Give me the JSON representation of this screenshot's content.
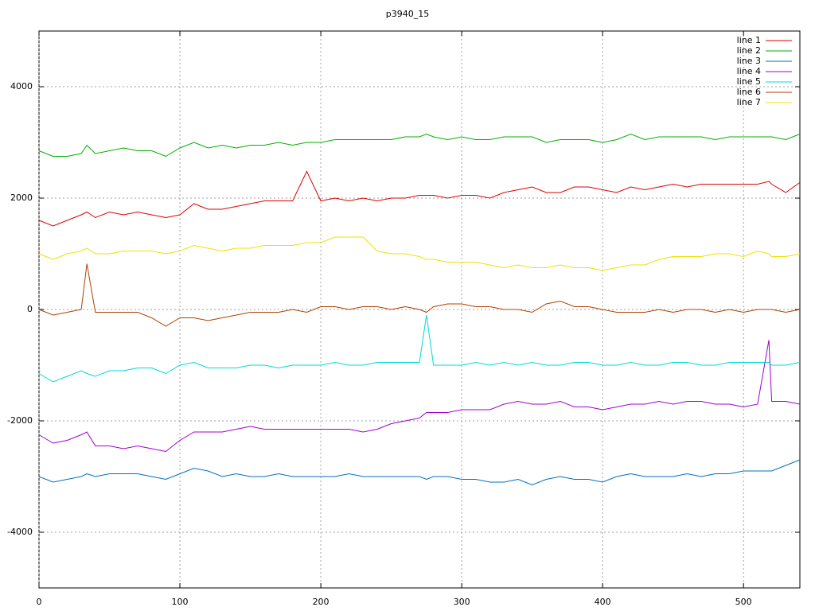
{
  "chart_data": {
    "type": "line",
    "title": "p3940_15",
    "x": [
      0,
      10,
      20,
      30,
      34,
      40,
      50,
      60,
      70,
      80,
      90,
      100,
      110,
      120,
      130,
      140,
      150,
      160,
      170,
      180,
      190,
      200,
      210,
      220,
      230,
      240,
      250,
      260,
      270,
      275,
      280,
      290,
      300,
      310,
      320,
      330,
      340,
      350,
      360,
      370,
      380,
      390,
      400,
      410,
      420,
      430,
      440,
      450,
      460,
      470,
      480,
      490,
      500,
      510,
      518,
      520,
      530,
      540
    ],
    "xlim": [
      0,
      540
    ],
    "xticks": [
      0,
      100,
      200,
      300,
      400,
      500
    ],
    "ylim": [
      -5000,
      5000
    ],
    "yticks": [
      -4000,
      -2000,
      0,
      2000,
      4000
    ],
    "grid": true,
    "legend": "top-right",
    "series": [
      {
        "name": "line 1",
        "color": "#e00000",
        "values": [
          1600,
          1500,
          1600,
          1700,
          1750,
          1650,
          1750,
          1700,
          1750,
          1700,
          1650,
          1700,
          1900,
          1800,
          1800,
          1850,
          1900,
          1950,
          1950,
          1950,
          2480,
          1950,
          2000,
          1950,
          2000,
          1950,
          2000,
          2000,
          2050,
          2050,
          2050,
          2000,
          2050,
          2050,
          2000,
          2100,
          2150,
          2200,
          2100,
          2100,
          2200,
          2200,
          2150,
          2100,
          2200,
          2150,
          2200,
          2250,
          2200,
          2250,
          2250,
          2250,
          2250,
          2250,
          2300,
          2250,
          2100,
          2280
        ]
      },
      {
        "name": "line 2",
        "color": "#00b000",
        "values": [
          2850,
          2750,
          2750,
          2800,
          2950,
          2800,
          2850,
          2900,
          2850,
          2850,
          2750,
          2900,
          3000,
          2900,
          2950,
          2900,
          2950,
          2950,
          3000,
          2950,
          3000,
          3000,
          3050,
          3050,
          3050,
          3050,
          3050,
          3100,
          3100,
          3150,
          3100,
          3050,
          3100,
          3050,
          3050,
          3100,
          3100,
          3100,
          3000,
          3050,
          3050,
          3050,
          3000,
          3050,
          3150,
          3050,
          3100,
          3100,
          3100,
          3100,
          3050,
          3100,
          3100,
          3100,
          3100,
          3100,
          3050,
          3150
        ]
      },
      {
        "name": "line 3",
        "color": "#0070c0",
        "values": [
          -3000,
          -3100,
          -3050,
          -3000,
          -2950,
          -3000,
          -2950,
          -2950,
          -2950,
          -3000,
          -3050,
          -2950,
          -2850,
          -2900,
          -3000,
          -2950,
          -3000,
          -3000,
          -2950,
          -3000,
          -3000,
          -3000,
          -3000,
          -2950,
          -3000,
          -3000,
          -3000,
          -3000,
          -3000,
          -3050,
          -3000,
          -3000,
          -3050,
          -3050,
          -3100,
          -3100,
          -3050,
          -3150,
          -3050,
          -3000,
          -3050,
          -3050,
          -3100,
          -3000,
          -2950,
          -3000,
          -3000,
          -3000,
          -2950,
          -3000,
          -2950,
          -2950,
          -2900,
          -2900,
          -2900,
          -2900,
          -2800,
          -2700
        ]
      },
      {
        "name": "line 4",
        "color": "#a000d0",
        "values": [
          -2250,
          -2400,
          -2350,
          -2250,
          -2200,
          -2450,
          -2450,
          -2500,
          -2450,
          -2500,
          -2550,
          -2350,
          -2200,
          -2200,
          -2200,
          -2150,
          -2100,
          -2150,
          -2150,
          -2150,
          -2150,
          -2150,
          -2150,
          -2150,
          -2200,
          -2150,
          -2050,
          -2000,
          -1950,
          -1850,
          -1850,
          -1850,
          -1800,
          -1800,
          -1800,
          -1700,
          -1650,
          -1700,
          -1700,
          -1650,
          -1750,
          -1750,
          -1800,
          -1750,
          -1700,
          -1700,
          -1650,
          -1700,
          -1650,
          -1650,
          -1700,
          -1700,
          -1750,
          -1700,
          -550,
          -1650,
          -1650,
          -1700
        ]
      },
      {
        "name": "line 5",
        "color": "#00d8d8",
        "values": [
          -1150,
          -1300,
          -1200,
          -1100,
          -1150,
          -1200,
          -1100,
          -1100,
          -1050,
          -1050,
          -1150,
          -1000,
          -950,
          -1050,
          -1050,
          -1050,
          -1000,
          -1000,
          -1050,
          -1000,
          -1000,
          -1000,
          -950,
          -1000,
          -1000,
          -950,
          -950,
          -950,
          -950,
          -100,
          -1000,
          -1000,
          -1000,
          -950,
          -1000,
          -950,
          -1000,
          -950,
          -1000,
          -1000,
          -950,
          -950,
          -1000,
          -1000,
          -950,
          -1000,
          -1000,
          -950,
          -950,
          -1000,
          -1000,
          -950,
          -950,
          -950,
          -950,
          -1000,
          -1000,
          -950
        ]
      },
      {
        "name": "line 6",
        "color": "#b04000",
        "values": [
          0,
          -100,
          -50,
          0,
          820,
          -50,
          -50,
          -50,
          -50,
          -150,
          -300,
          -150,
          -150,
          -200,
          -150,
          -100,
          -50,
          -50,
          -50,
          0,
          -50,
          50,
          50,
          0,
          50,
          50,
          0,
          50,
          0,
          -50,
          50,
          100,
          100,
          50,
          50,
          0,
          0,
          -50,
          100,
          150,
          50,
          50,
          0,
          -50,
          -50,
          -50,
          0,
          -50,
          0,
          0,
          -50,
          0,
          -50,
          0,
          0,
          0,
          -50,
          0
        ]
      },
      {
        "name": "line 7",
        "color": "#f0e000",
        "values": [
          1000,
          900,
          1000,
          1050,
          1100,
          1000,
          1000,
          1050,
          1050,
          1050,
          1000,
          1050,
          1150,
          1100,
          1050,
          1100,
          1100,
          1150,
          1150,
          1150,
          1200,
          1200,
          1300,
          1300,
          1300,
          1050,
          1000,
          1000,
          950,
          900,
          900,
          850,
          850,
          850,
          800,
          750,
          800,
          750,
          750,
          800,
          750,
          750,
          700,
          750,
          800,
          800,
          900,
          950,
          950,
          950,
          1000,
          1000,
          950,
          1050,
          1000,
          950,
          950,
          1000
        ]
      }
    ]
  }
}
